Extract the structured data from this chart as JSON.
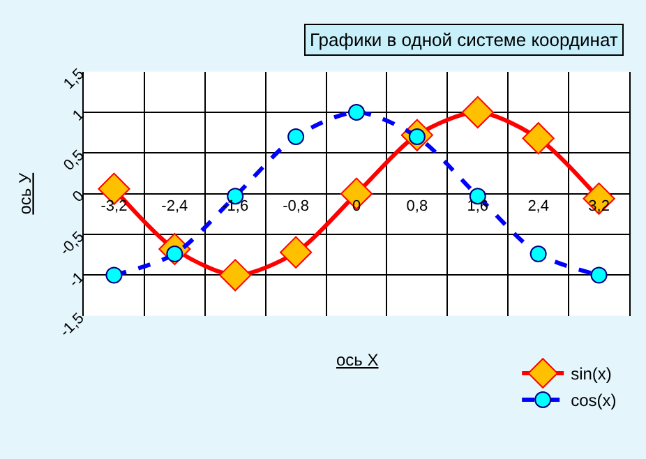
{
  "chart_data": {
    "type": "line",
    "title": "Графики в одной системе координат",
    "xlabel": "ось X",
    "ylabel": "ось У",
    "categories": [
      "-3,2",
      "-2,4",
      "-1,6",
      "-0,8",
      "0",
      "0,8",
      "1,6",
      "2,4",
      "3,2"
    ],
    "series": [
      {
        "name": "sin(x)",
        "color": "#ff0000",
        "marker": "diamond",
        "line_style": "solid",
        "values": [
          0.06,
          -0.68,
          -1,
          -0.72,
          0,
          0.72,
          1,
          0.68,
          -0.06
        ]
      },
      {
        "name": "cos(x)",
        "color": "#0000ff",
        "marker": "circle",
        "line_style": "dashed",
        "values": [
          -1,
          -0.74,
          -0.03,
          0.7,
          1,
          0.7,
          -0.03,
          -0.74,
          -1
        ]
      }
    ],
    "ylim": [
      -1.5,
      1.5
    ],
    "yticks": [
      {
        "value": -1.5,
        "label": "-1,5"
      },
      {
        "value": -1,
        "label": "-1"
      },
      {
        "value": -0.5,
        "label": "-0,5"
      },
      {
        "value": 0,
        "label": "0"
      },
      {
        "value": 0.5,
        "label": "0,5"
      },
      {
        "value": 1,
        "label": "1"
      },
      {
        "value": 1.5,
        "label": "1,5"
      }
    ],
    "grid": true,
    "legend": "bottom right"
  }
}
